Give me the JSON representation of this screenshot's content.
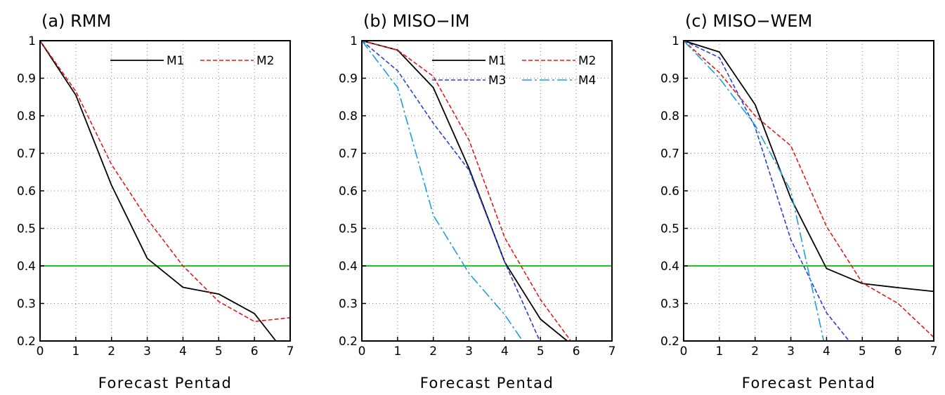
{
  "colors": {
    "M1": "#000000",
    "M2": "#e31a1c",
    "M3": "#2b3fd9",
    "M4": "#1e9fd8",
    "threshold": "#22c41e",
    "grid": "#888888"
  },
  "chart_data": [
    {
      "type": "line",
      "title": "(a) RMM",
      "xlabel": "Forecast Pentad",
      "ylabel": "",
      "xlim": [
        0,
        7
      ],
      "ylim": [
        0.2,
        1.0
      ],
      "xticks": [
        "0",
        "1",
        "2",
        "3",
        "4",
        "5",
        "6",
        "7"
      ],
      "yticks": [
        "0.2",
        "0.3",
        "0.4",
        "0.5",
        "0.6",
        "0.7",
        "0.8",
        "0.9",
        "1"
      ],
      "grid": true,
      "threshold": 0.4,
      "legend_rows": [
        [
          "M1",
          "M2"
        ]
      ],
      "series": [
        {
          "name": "M1",
          "style": "solid",
          "x": [
            0,
            1,
            2,
            3,
            4,
            5,
            6,
            6.6
          ],
          "y": [
            1.0,
            0.855,
            0.615,
            0.42,
            0.343,
            0.325,
            0.273,
            0.2
          ]
        },
        {
          "name": "M2",
          "style": "dash",
          "x": [
            0,
            1,
            2,
            3,
            4,
            5,
            6,
            7
          ],
          "y": [
            1.0,
            0.865,
            0.67,
            0.525,
            0.4,
            0.305,
            0.252,
            0.262
          ]
        }
      ]
    },
    {
      "type": "line",
      "title": "(b) MISO−IM",
      "xlabel": "Forecast Pentad",
      "ylabel": "",
      "xlim": [
        0,
        7
      ],
      "ylim": [
        0.2,
        1.0
      ],
      "xticks": [
        "0",
        "1",
        "2",
        "3",
        "4",
        "5",
        "6",
        "7"
      ],
      "yticks": [
        "0.2",
        "0.3",
        "0.4",
        "0.5",
        "0.6",
        "0.7",
        "0.8",
        "0.9",
        "1"
      ],
      "grid": true,
      "threshold": 0.4,
      "legend_rows": [
        [
          "M1",
          "M2"
        ],
        [
          "M3",
          "M4"
        ]
      ],
      "series": [
        {
          "name": "M1",
          "style": "solid",
          "x": [
            0,
            1,
            2,
            3,
            4,
            5,
            5.75
          ],
          "y": [
            1.0,
            0.975,
            0.875,
            0.66,
            0.41,
            0.258,
            0.2
          ]
        },
        {
          "name": "M2",
          "style": "dash",
          "x": [
            0,
            1,
            2,
            3,
            4,
            5,
            5.85
          ],
          "y": [
            1.0,
            0.975,
            0.905,
            0.735,
            0.475,
            0.31,
            0.2
          ]
        },
        {
          "name": "M3",
          "style": "dash",
          "x": [
            0,
            1,
            2,
            3,
            4,
            4.98
          ],
          "y": [
            1.0,
            0.92,
            0.78,
            0.655,
            0.41,
            0.2
          ]
        },
        {
          "name": "M4",
          "style": "dashdot",
          "x": [
            0,
            1,
            2,
            3,
            4,
            4.5
          ],
          "y": [
            1.0,
            0.875,
            0.535,
            0.38,
            0.27,
            0.2
          ]
        }
      ]
    },
    {
      "type": "line",
      "title": "(c) MISO−WEM",
      "xlabel": "Forecast Pentad",
      "ylabel": "",
      "xlim": [
        0,
        7
      ],
      "ylim": [
        0.2,
        1.0
      ],
      "xticks": [
        "0",
        "1",
        "2",
        "3",
        "4",
        "5",
        "6",
        "7"
      ],
      "yticks": [
        "0.2",
        "0.3",
        "0.4",
        "0.5",
        "0.6",
        "0.7",
        "0.8",
        "0.9",
        "1"
      ],
      "grid": true,
      "threshold": 0.4,
      "legend_rows": [],
      "series": [
        {
          "name": "M1",
          "style": "solid",
          "x": [
            0,
            1,
            2,
            3,
            4,
            5,
            6,
            7
          ],
          "y": [
            1.0,
            0.97,
            0.83,
            0.58,
            0.393,
            0.353,
            0.342,
            0.332
          ]
        },
        {
          "name": "M2",
          "style": "dash",
          "x": [
            0,
            1,
            2,
            3,
            4,
            5,
            6,
            7
          ],
          "y": [
            1.0,
            0.915,
            0.8,
            0.72,
            0.505,
            0.355,
            0.3,
            0.21
          ]
        },
        {
          "name": "M3",
          "style": "dash",
          "x": [
            0,
            1,
            2,
            3,
            4,
            4.63
          ],
          "y": [
            1.0,
            0.955,
            0.77,
            0.47,
            0.275,
            0.2
          ]
        },
        {
          "name": "M4",
          "style": "dashdot",
          "x": [
            0,
            1,
            2,
            3,
            3.92
          ],
          "y": [
            1.0,
            0.9,
            0.775,
            0.6,
            0.2
          ]
        }
      ]
    }
  ]
}
